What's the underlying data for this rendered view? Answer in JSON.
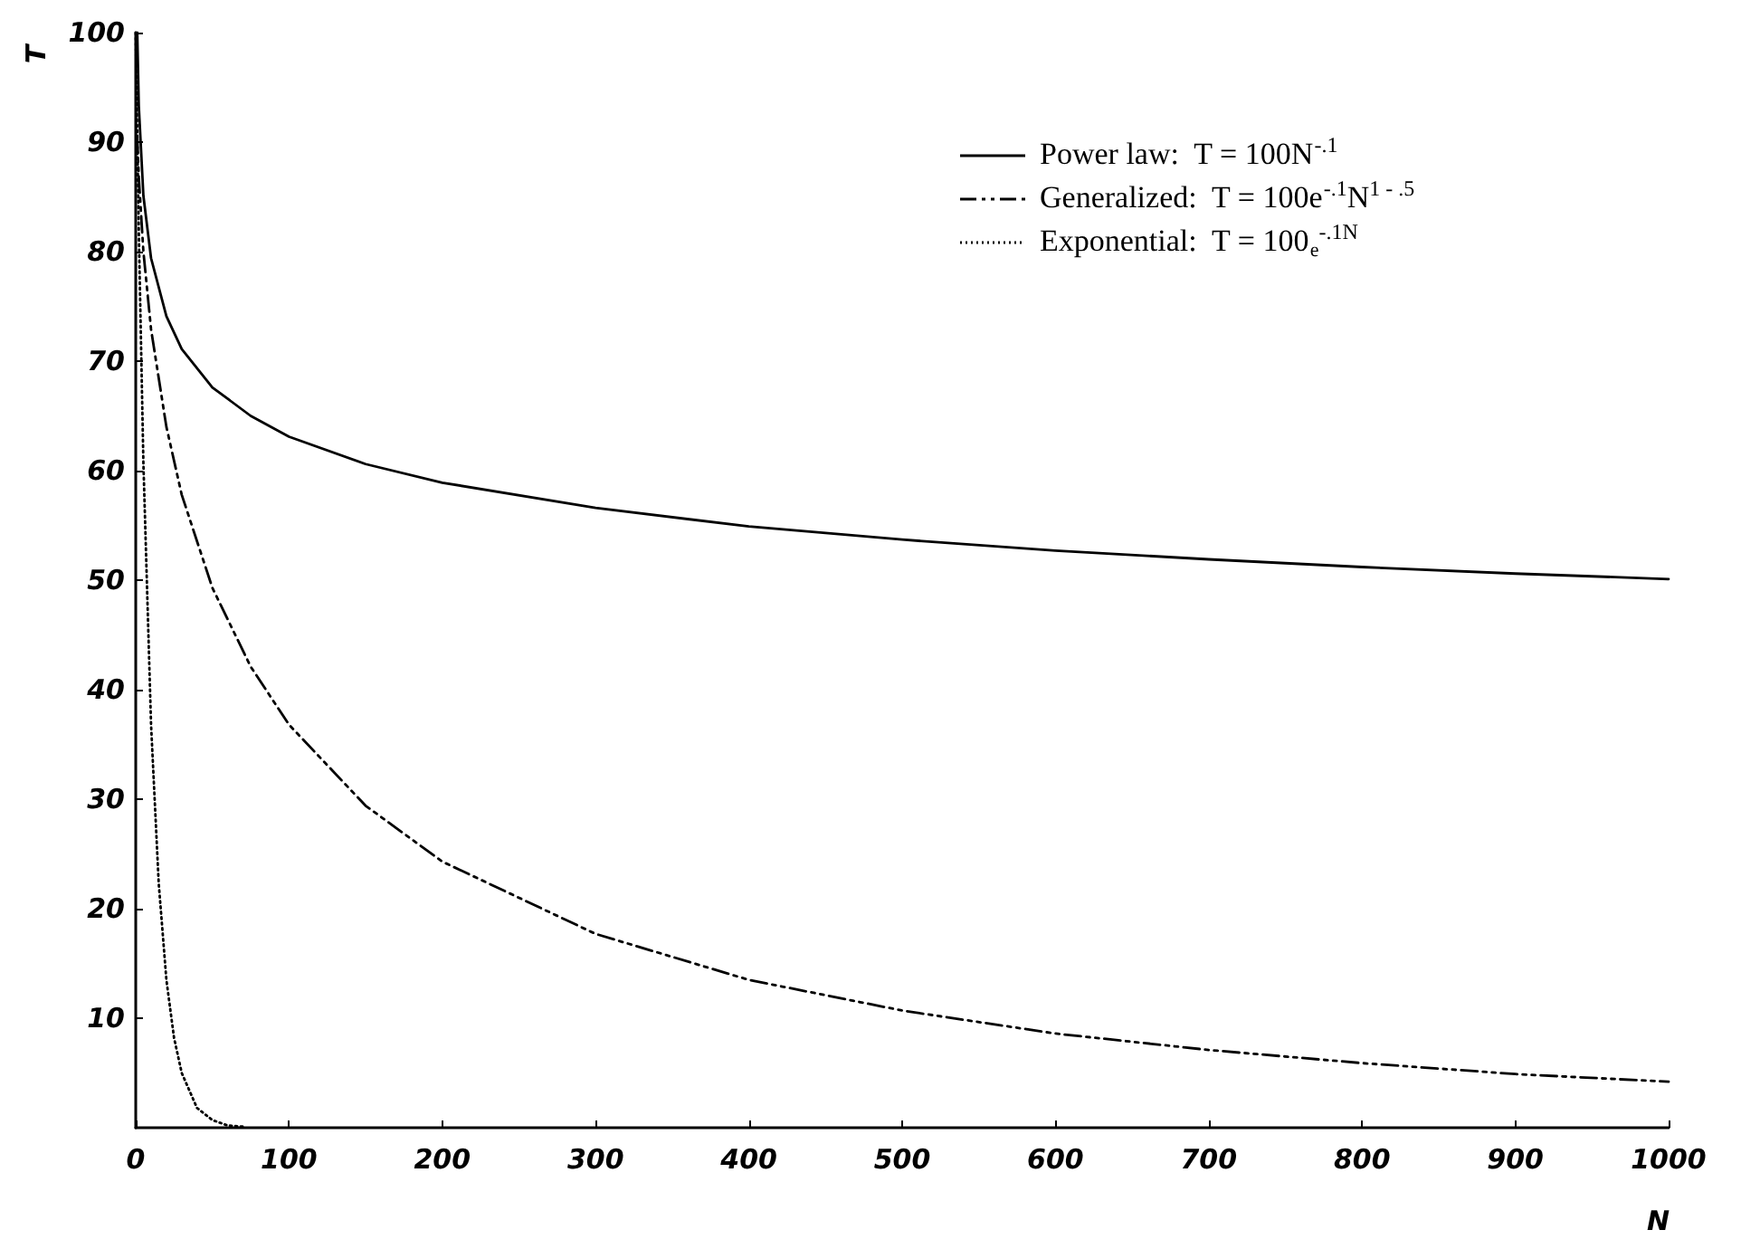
{
  "chart_data": {
    "type": "line",
    "xlabel": "N",
    "ylabel": "T",
    "xlim": [
      0,
      1000
    ],
    "xticks": [
      0,
      100,
      200,
      300,
      400,
      500,
      600,
      700,
      800,
      900,
      1000
    ],
    "ylim": [
      0,
      100
    ],
    "yticks": [
      10,
      20,
      30,
      40,
      50,
      60,
      70,
      80,
      90,
      100
    ],
    "grid": false,
    "legend": "top right",
    "marker": "none",
    "series": [
      {
        "name": "Power law:  T = 100N$^{-.1}$",
        "color": "#000000",
        "line_style": "solid",
        "x": [
          1,
          2,
          5,
          10,
          20,
          30,
          50,
          75,
          100,
          150,
          200,
          300,
          400,
          500,
          600,
          700,
          800,
          900,
          1000
        ],
        "values": [
          100,
          93.3,
          85.1,
          79.4,
          74.1,
          71.1,
          67.6,
          65.0,
          63.1,
          60.6,
          58.9,
          56.6,
          54.9,
          53.7,
          52.7,
          51.9,
          51.2,
          50.6,
          50.1
        ]
      },
      {
        "name": "Generalized:  T = 100e$^{-.1}$N$^{1 - .5}$",
        "color": "#000000",
        "line_style": "dashed",
        "x": [
          1,
          2,
          5,
          10,
          20,
          30,
          50,
          75,
          100,
          150,
          200,
          300,
          400,
          500,
          600,
          700,
          800,
          900,
          1000
        ],
        "values": [
          90.5,
          86.8,
          80.0,
          72.9,
          64.0,
          57.8,
          49.3,
          42.1,
          36.8,
          29.4,
          24.3,
          17.7,
          13.5,
          10.7,
          8.6,
          7.1,
          5.9,
          4.9,
          4.2
        ]
      },
      {
        "name": "Exponential:  T = 100$_{e}$$^{-.1N}$",
        "color": "#000000",
        "line_style": "dotted",
        "x": [
          0,
          1,
          2,
          5,
          10,
          15,
          20,
          25,
          30,
          40,
          50,
          60,
          70
        ],
        "values": [
          100,
          90.5,
          81.9,
          60.7,
          36.8,
          22.3,
          13.5,
          8.2,
          5.0,
          1.8,
          0.7,
          0.2,
          0.1
        ]
      }
    ]
  }
}
